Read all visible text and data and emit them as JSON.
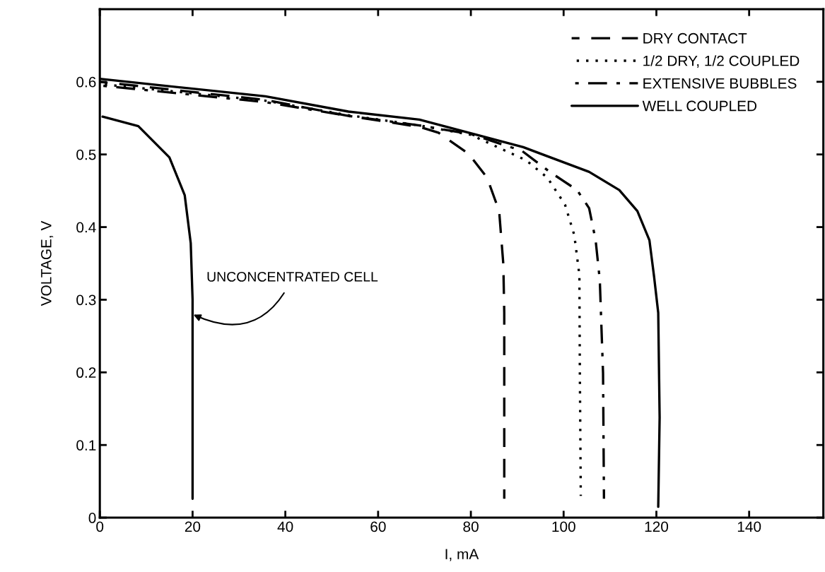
{
  "chart_data": {
    "type": "line",
    "xlabel": "I, mA",
    "ylabel": "VOLTAGE, V",
    "xlim": [
      0,
      156
    ],
    "ylim": [
      0,
      0.7
    ],
    "xticks": [
      0,
      20,
      40,
      60,
      80,
      100,
      120,
      140
    ],
    "yticks": [
      0,
      0.1,
      0.2,
      0.3,
      0.4,
      0.5,
      0.6
    ],
    "grid": false,
    "legend": "top right",
    "marker": "none",
    "series": [
      {
        "name": "DRY CONTACT",
        "color": "#000000",
        "line_style": "dashed",
        "x": [
          0,
          35.7,
          53.6,
          68.9,
          73,
          79.5,
          83.5,
          86.1,
          87,
          87.2,
          87.2
        ],
        "values": [
          0.6,
          0.575,
          0.553,
          0.538,
          0.53,
          0.501,
          0.468,
          0.422,
          0.349,
          0.282,
          0.026
        ]
      },
      {
        "name": "1/2 DRY, 1/2 COUPLED",
        "color": "#000000",
        "line_style": "dotted",
        "x": [
          0,
          35.7,
          53.6,
          68.9,
          80,
          91.9,
          96.5,
          100.3,
          102.3,
          103.4,
          103.5,
          103.7
        ],
        "values": [
          0.597,
          0.574,
          0.554,
          0.54,
          0.527,
          0.492,
          0.468,
          0.431,
          0.389,
          0.334,
          0.199,
          0.03
        ]
      },
      {
        "name": "EXTENSIVE BUBBLES",
        "color": "#000000",
        "line_style": "dashdot",
        "x": [
          0,
          35.7,
          53.6,
          68.9,
          80,
          91,
          97,
          102.9,
          105.5,
          106.9,
          107.8,
          108.5,
          108.7
        ],
        "values": [
          0.595,
          0.572,
          0.553,
          0.54,
          0.528,
          0.505,
          0.476,
          0.451,
          0.426,
          0.382,
          0.327,
          0.199,
          0.026
        ]
      },
      {
        "name": "WELL COUPLED",
        "color": "#000000",
        "line_style": "solid",
        "x": [
          0,
          35.7,
          53.6,
          68.9,
          91.3,
          105.5,
          112,
          115.9,
          118.5,
          119.5,
          120.4,
          120.7,
          120.4
        ],
        "values": [
          0.604,
          0.58,
          0.559,
          0.548,
          0.51,
          0.476,
          0.451,
          0.422,
          0.382,
          0.332,
          0.282,
          0.138,
          0.015
        ]
      },
      {
        "color": "#000000",
        "line_style": "solid",
        "x": [
          0.6,
          8.3,
          15,
          18.3,
          19.6,
          20,
          20
        ],
        "values": [
          0.552,
          0.539,
          0.496,
          0.444,
          0.378,
          0.3,
          0.026
        ]
      }
    ],
    "annotations": [
      {
        "text": "UNCONCENTRATED CELL",
        "x": 20,
        "y": 0.28
      }
    ]
  }
}
